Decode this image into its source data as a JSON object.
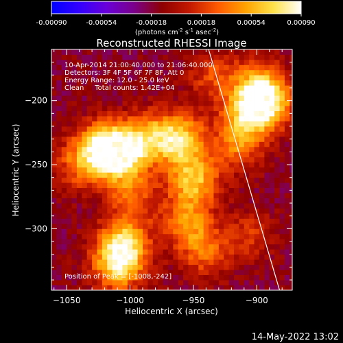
{
  "colorbar": {
    "ticks": [
      "-0.00090",
      "-0.00054",
      "-0.00018",
      "0.00018",
      "0.00054",
      "0.00090"
    ],
    "min": -0.0009,
    "max": 0.0009,
    "unit_main": "(photons cm",
    "unit_exp1": "-2",
    "unit_mid": " s",
    "unit_exp2": "-1",
    "unit_end": " asec",
    "unit_exp3": "-2",
    "unit_close": ")",
    "colormap": [
      "#0000ff",
      "#3300ff",
      "#6a00d8",
      "#7b0088",
      "#8e0000",
      "#c41a00",
      "#ff5a00",
      "#ffa300",
      "#ffe24a",
      "#ffffff"
    ]
  },
  "chart_data": {
    "type": "heatmap",
    "title": "Reconstructed RHESSI Image",
    "xlabel": "Heliocentric X (arcsec)",
    "ylabel": "Heliocentric Y (arcsec)",
    "x_ticks": [
      -1050,
      -1000,
      -950,
      -900
    ],
    "y_ticks": [
      -200,
      -250,
      -300
    ],
    "xlim": [
      -1062,
      -872
    ],
    "ylim": [
      -348,
      -160
    ],
    "x_tick_labels": [
      "−1050",
      "−1000",
      "−950",
      "−900"
    ],
    "y_tick_labels": [
      "−200",
      "−250",
      "−300"
    ],
    "annotations": [
      "10-Apr-2014 21:00:40.000 to 21:06:40.000",
      "Detectors: 3F 4F 5F 6F 7F 8F, Att 0",
      "Energy Range: 12.0 - 25.0 keV",
      "Clean     Total counts: 1.42E+04"
    ],
    "peak_label": "Position of Peak = [-1008,-242]",
    "peak": [
      -1008,
      -242
    ],
    "sources": [
      {
        "x": -1008,
        "y": -242,
        "intensity": 1.0
      },
      {
        "x": -1022,
        "y": -235,
        "intensity": 0.7
      },
      {
        "x": -985,
        "y": -228,
        "intensity": 0.6
      },
      {
        "x": -960,
        "y": -230,
        "intensity": 0.8
      },
      {
        "x": -950,
        "y": -262,
        "intensity": 0.75
      },
      {
        "x": -955,
        "y": -295,
        "intensity": 0.55
      },
      {
        "x": -940,
        "y": -318,
        "intensity": 0.45
      },
      {
        "x": -1005,
        "y": -312,
        "intensity": 0.8
      },
      {
        "x": -1010,
        "y": -330,
        "intensity": 0.7
      },
      {
        "x": -998,
        "y": -275,
        "intensity": 0.45
      },
      {
        "x": -905,
        "y": -208,
        "intensity": 0.8
      },
      {
        "x": -890,
        "y": -200,
        "intensity": 0.7
      },
      {
        "x": -915,
        "y": -235,
        "intensity": 0.5
      },
      {
        "x": -900,
        "y": -185,
        "intensity": 0.45
      },
      {
        "x": -935,
        "y": -180,
        "intensity": 0.35
      },
      {
        "x": -1040,
        "y": -250,
        "intensity": 0.45
      },
      {
        "x": -905,
        "y": -305,
        "intensity": 0.3
      }
    ],
    "limb_line": {
      "from": [
        -938,
        -160
      ],
      "to": [
        -882,
        -348
      ]
    }
  },
  "footer": {
    "timestamp": "14-May-2022 13:02"
  }
}
